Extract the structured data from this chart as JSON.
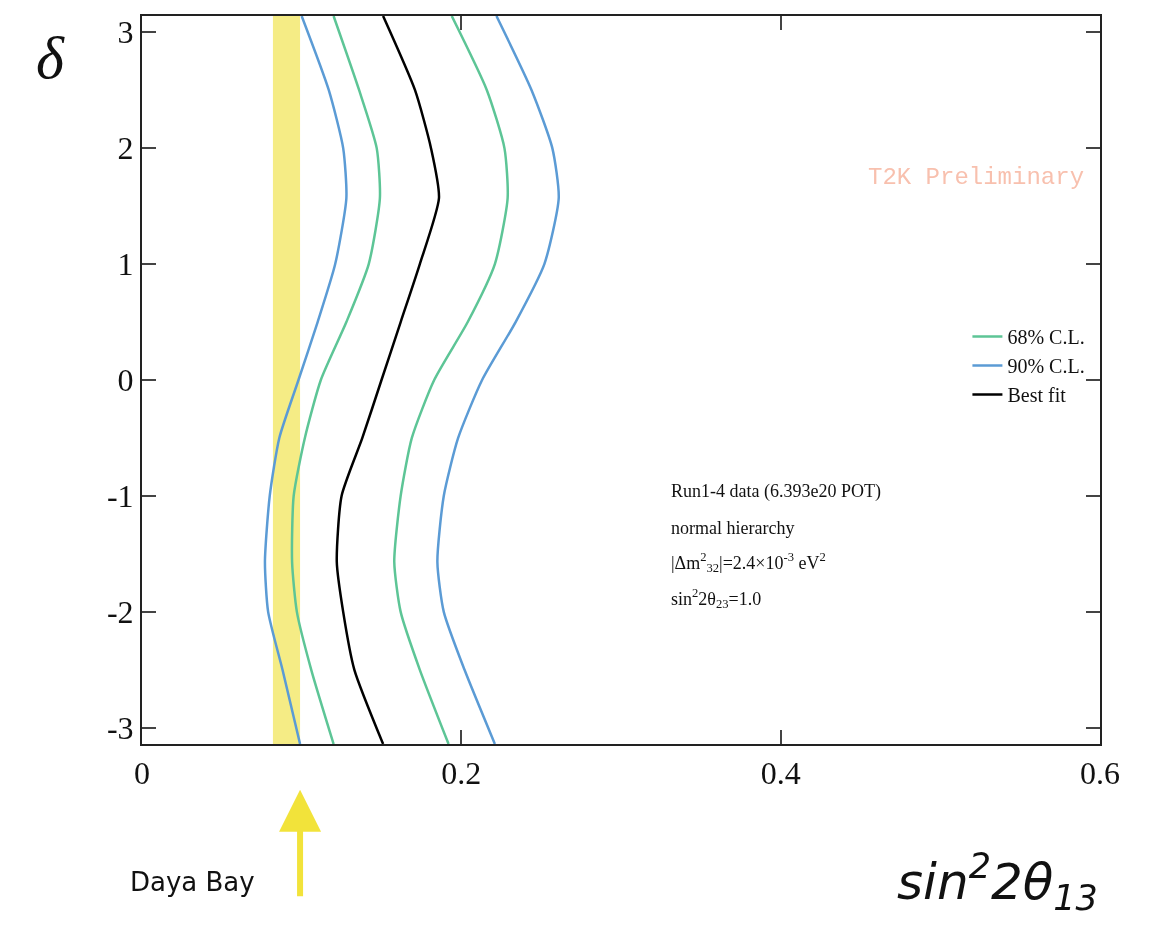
{
  "chart_data": {
    "type": "line",
    "xlabel": "sin$^{2}$2θ$_{13}$",
    "ylabel": "δ",
    "xlim": [
      0,
      0.6
    ],
    "xticks": [
      0,
      0.2,
      0.4,
      0.6
    ],
    "ylim": [
      -3.14,
      3.14
    ],
    "yticks": [
      -3,
      -2,
      -1,
      0,
      1,
      2,
      3
    ],
    "grid": false,
    "legend": "right",
    "marker": "none",
    "line_style": "solid",
    "series": [
      {
        "name": "68% C.L.",
        "color": "#5dc596",
        "x": [
          0.12,
          0.136,
          0.147,
          0.149,
          0.142,
          0.128,
          0.112,
          0.102,
          0.095,
          0.094,
          0.097,
          0.106,
          0.12
        ],
        "values": [
          3.14,
          2.5,
          2,
          1.57,
          1,
          0.5,
          0,
          -0.5,
          -1,
          -1.57,
          -2,
          -2.5,
          -3.14
        ]
      },
      {
        "color": "#5dc596",
        "x": [
          0.194,
          0.216,
          0.227,
          0.229,
          0.221,
          0.204,
          0.183,
          0.169,
          0.162,
          0.158,
          0.162,
          0.174,
          0.192
        ],
        "values": [
          3.14,
          2.5,
          2,
          1.57,
          1,
          0.5,
          0,
          -0.5,
          -1,
          -1.57,
          -2,
          -2.5,
          -3.14
        ]
      },
      {
        "name": "90% C.L.",
        "color": "#5b9bd5",
        "x": [
          0.1,
          0.117,
          0.126,
          0.128,
          0.121,
          0.11,
          0.098,
          0.086,
          0.08,
          0.077,
          0.079,
          0.088,
          0.099
        ],
        "values": [
          3.14,
          2.5,
          2,
          1.57,
          1,
          0.5,
          0,
          -0.5,
          -1,
          -1.57,
          -2,
          -2.5,
          -3.14
        ]
      },
      {
        "color": "#5b9bd5",
        "x": [
          0.222,
          0.244,
          0.257,
          0.261,
          0.252,
          0.234,
          0.213,
          0.198,
          0.189,
          0.185,
          0.189,
          0.202,
          0.221
        ],
        "values": [
          3.14,
          2.5,
          2,
          1.57,
          1,
          0.5,
          0,
          -0.5,
          -1,
          -1.57,
          -2,
          -2.5,
          -3.14
        ]
      },
      {
        "name": "Best fit",
        "color": "#000000",
        "x": [
          0.151,
          0.171,
          0.181,
          0.186,
          0.174,
          0.162,
          0.15,
          0.138,
          0.125,
          0.122,
          0.126,
          0.133,
          0.151
        ],
        "values": [
          3.14,
          2.5,
          2,
          1.57,
          1,
          0.5,
          0,
          -0.5,
          -1,
          -1.57,
          -2,
          -2.5,
          -3.14
        ]
      }
    ],
    "bands": [
      {
        "axis": "x",
        "from": 0.082,
        "to": 0.099,
        "color": "#f5ec85"
      }
    ],
    "annotations": [
      "T2K Preliminary",
      "Run1-4 data (6.393e20 POT)",
      "normal hierarchy",
      "|Δm$^{2}$$_{32}$|=2.4×10$^{-3}$ eV$^{2}$",
      "sin$^{2}$2θ$_{23}$=1.0",
      "Daya Bay"
    ]
  }
}
